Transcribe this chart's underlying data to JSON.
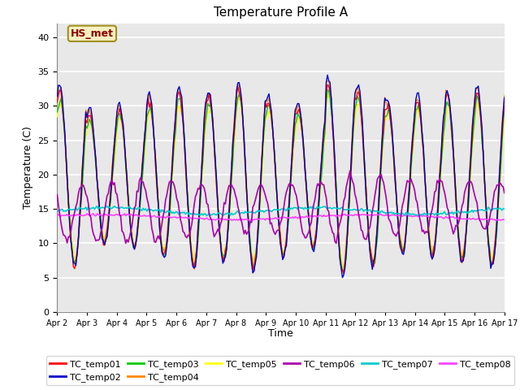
{
  "title": "Temperature Profile A",
  "xlabel": "Time",
  "ylabel": "Temperature (C)",
  "ylim": [
    0,
    42
  ],
  "date_labels": [
    "Apr 2",
    "Apr 3",
    "Apr 4",
    "Apr 5",
    "Apr 6",
    "Apr 7",
    "Apr 8",
    "Apr 9",
    "Apr 10",
    "Apr 11",
    "Apr 12",
    "Apr 13",
    "Apr 14",
    "Apr 15",
    "Apr 16",
    "Apr 17"
  ],
  "annotation_text": "HS_met",
  "annotation_color": "#8B0000",
  "annotation_bg": "#F5F0C0",
  "annotation_edge": "#A09020",
  "series_colors": {
    "TC_temp01": "#FF0000",
    "TC_temp02": "#0000CC",
    "TC_temp03": "#00CC00",
    "TC_temp04": "#FF8800",
    "TC_temp05": "#FFFF00",
    "TC_temp06": "#AA00AA",
    "TC_temp07": "#00CCCC",
    "TC_temp08": "#FF44FF"
  },
  "background_color": "#E8E8E8",
  "grid_color": "#FFFFFF",
  "title_fontsize": 11,
  "axis_label_fontsize": 9,
  "tick_fontsize": 8,
  "legend_fontsize": 8
}
